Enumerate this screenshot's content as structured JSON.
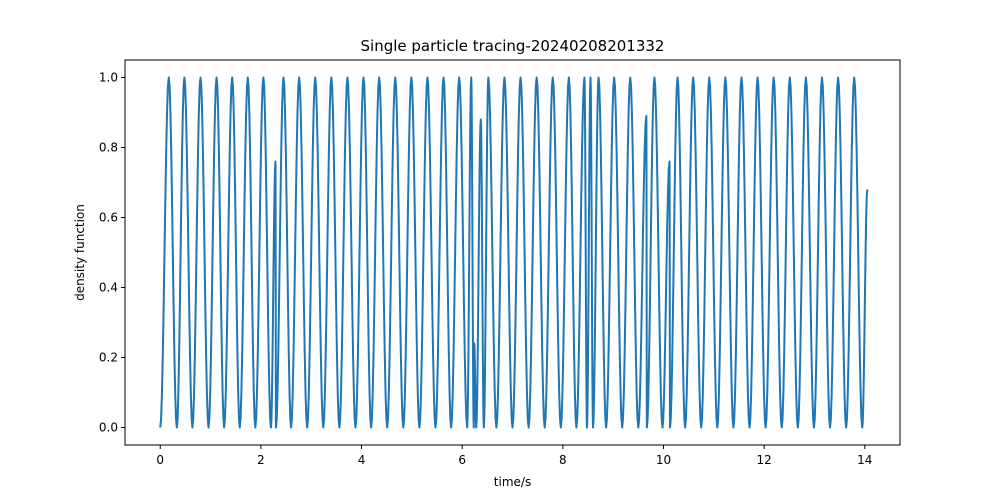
{
  "chart_data": {
    "type": "line",
    "title": "Single particle tracing-20240208201332",
    "xlabel": "time/s",
    "ylabel": "density function",
    "xlim": [
      -0.7,
      14.7
    ],
    "ylim": [
      -0.05,
      1.05
    ],
    "xticks": [
      0,
      2,
      4,
      6,
      8,
      10,
      12,
      14
    ],
    "yticks": [
      0.0,
      0.2,
      0.4,
      0.6,
      0.8,
      1.0
    ],
    "xtick_labels": [
      "0",
      "2",
      "4",
      "6",
      "8",
      "10",
      "12",
      "14"
    ],
    "ytick_labels": [
      "0.0",
      "0.2",
      "0.4",
      "0.6",
      "0.8",
      "1.0"
    ],
    "grid": false,
    "legend": "none",
    "series": [
      {
        "color": "#1f77b4",
        "points": [
          [
            0.0,
            0.0
          ],
          [
            0.17,
            1.0
          ],
          [
            0.33,
            0.0
          ],
          [
            0.48,
            1.0
          ],
          [
            0.64,
            0.0
          ],
          [
            0.8,
            1.0
          ],
          [
            0.96,
            0.0
          ],
          [
            1.12,
            1.0
          ],
          [
            1.27,
            0.0
          ],
          [
            1.43,
            1.0
          ],
          [
            1.58,
            0.0
          ],
          [
            1.74,
            1.0
          ],
          [
            1.89,
            0.0
          ],
          [
            2.05,
            1.0
          ],
          [
            2.2,
            0.0
          ],
          [
            2.29,
            0.76
          ],
          [
            2.3,
            0.0
          ],
          [
            2.45,
            1.0
          ],
          [
            2.6,
            0.0
          ],
          [
            2.76,
            1.0
          ],
          [
            2.92,
            0.0
          ],
          [
            3.08,
            1.0
          ],
          [
            3.24,
            0.0
          ],
          [
            3.4,
            1.0
          ],
          [
            3.56,
            0.0
          ],
          [
            3.72,
            1.0
          ],
          [
            3.88,
            0.0
          ],
          [
            4.04,
            1.0
          ],
          [
            4.19,
            0.0
          ],
          [
            4.35,
            1.0
          ],
          [
            4.51,
            0.0
          ],
          [
            4.67,
            1.0
          ],
          [
            4.83,
            0.0
          ],
          [
            4.99,
            1.0
          ],
          [
            5.15,
            0.0
          ],
          [
            5.31,
            1.0
          ],
          [
            5.47,
            0.0
          ],
          [
            5.63,
            1.0
          ],
          [
            5.78,
            0.0
          ],
          [
            5.94,
            1.0
          ],
          [
            6.1,
            0.0
          ],
          [
            6.18,
            1.0
          ],
          [
            6.23,
            0.0
          ],
          [
            6.24,
            0.24
          ],
          [
            6.28,
            0.0
          ],
          [
            6.37,
            0.88
          ],
          [
            6.43,
            0.0
          ],
          [
            6.52,
            1.0
          ],
          [
            6.68,
            0.0
          ],
          [
            6.84,
            1.0
          ],
          [
            7.0,
            0.0
          ],
          [
            7.16,
            1.0
          ],
          [
            7.32,
            0.0
          ],
          [
            7.48,
            1.0
          ],
          [
            7.64,
            0.0
          ],
          [
            7.8,
            1.0
          ],
          [
            7.96,
            0.0
          ],
          [
            8.12,
            1.0
          ],
          [
            8.27,
            0.0
          ],
          [
            8.43,
            1.0
          ],
          [
            8.48,
            0.0
          ],
          [
            8.55,
            1.0
          ],
          [
            8.6,
            0.0
          ],
          [
            8.71,
            1.0
          ],
          [
            8.86,
            0.0
          ],
          [
            9.02,
            1.0
          ],
          [
            9.18,
            0.0
          ],
          [
            9.34,
            1.0
          ],
          [
            9.5,
            0.0
          ],
          [
            9.66,
            0.89
          ],
          [
            9.67,
            0.0
          ],
          [
            9.82,
            1.0
          ],
          [
            9.98,
            0.0
          ],
          [
            10.12,
            0.76
          ],
          [
            10.13,
            0.0
          ],
          [
            10.28,
            1.0
          ],
          [
            10.43,
            0.0
          ],
          [
            10.59,
            1.0
          ],
          [
            10.75,
            0.0
          ],
          [
            10.91,
            1.0
          ],
          [
            11.07,
            0.0
          ],
          [
            11.23,
            1.0
          ],
          [
            11.39,
            0.0
          ],
          [
            11.55,
            1.0
          ],
          [
            11.71,
            0.0
          ],
          [
            11.87,
            1.0
          ],
          [
            12.03,
            0.0
          ],
          [
            12.19,
            1.0
          ],
          [
            12.35,
            0.0
          ],
          [
            12.51,
            1.0
          ],
          [
            12.67,
            0.0
          ],
          [
            12.83,
            1.0
          ],
          [
            12.99,
            0.0
          ],
          [
            13.15,
            1.0
          ],
          [
            13.31,
            0.0
          ],
          [
            13.47,
            1.0
          ],
          [
            13.63,
            0.0
          ],
          [
            13.79,
            1.0
          ],
          [
            13.95,
            0.0
          ],
          [
            14.05,
            0.68
          ]
        ]
      }
    ]
  }
}
